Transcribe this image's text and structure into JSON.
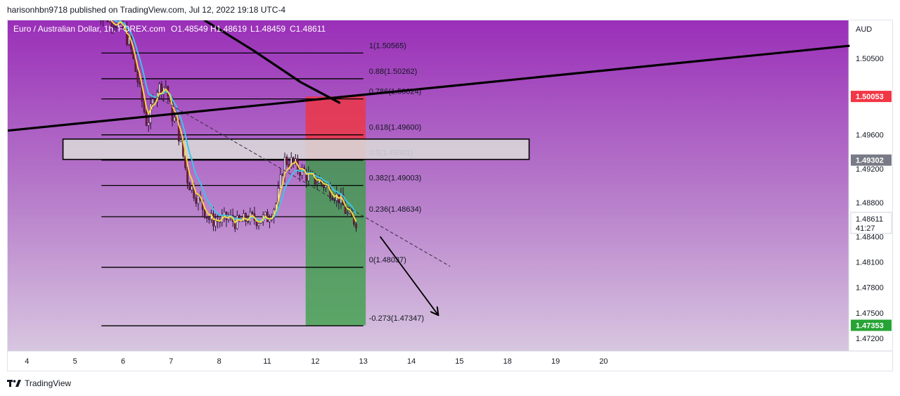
{
  "header": {
    "published_line": "harisonhbn9718 published on TradingView.com, Jul 12, 2022 19:18 UTC-4"
  },
  "legend": {
    "symbol": "Euro / Australian Dollar, 1h, FOREX.com",
    "open": "O1.48549",
    "high": "H1.48619",
    "low": "L1.48459",
    "close": "C1.48611"
  },
  "footer": {
    "brand": "TradingView"
  },
  "colors": {
    "background_top": "#9a2fb8",
    "background_bottom": "#d8c6e0",
    "candle_up": "#ffffff",
    "candle_down": "#8b1a2a",
    "ema_fast": "#f5d742",
    "ema_slow": "#3ec5e8",
    "stop_zone": "#f0353f",
    "target_zone": "#2e9e3a",
    "sr_box": "#d9d9d9",
    "price_tag_red": "#f23645",
    "price_tag_gray": "#787b86",
    "price_tag_green": "#26a334"
  },
  "chart_data": {
    "type": "candlestick",
    "instrument": "EURAUD",
    "timeframe": "1h",
    "currency_label": "AUD",
    "y_range": [
      1.4705,
      1.5095
    ],
    "y_ticks": [
      {
        "value": 1.505,
        "label": "1.50500"
      },
      {
        "value": 1.496,
        "label": "1.49600"
      },
      {
        "value": 1.492,
        "label": "1.49200"
      },
      {
        "value": 1.488,
        "label": "1.48800"
      },
      {
        "value": 1.484,
        "label": "1.48400"
      },
      {
        "value": 1.481,
        "label": "1.48100"
      },
      {
        "value": 1.478,
        "label": "1.47800"
      },
      {
        "value": 1.475,
        "label": "1.47500"
      },
      {
        "value": 1.472,
        "label": "1.47200"
      }
    ],
    "x_range": [
      3.6,
      21.1
    ],
    "x_ticks": [
      {
        "value": 4,
        "label": "4"
      },
      {
        "value": 5,
        "label": "5"
      },
      {
        "value": 6,
        "label": "6"
      },
      {
        "value": 7,
        "label": "7"
      },
      {
        "value": 8,
        "label": "8"
      },
      {
        "value": 9,
        "label": "11"
      },
      {
        "value": 10,
        "label": "12"
      },
      {
        "value": 11,
        "label": "13"
      },
      {
        "value": 12,
        "label": "14"
      },
      {
        "value": 13,
        "label": "15"
      },
      {
        "value": 14,
        "label": "18"
      },
      {
        "value": 15,
        "label": "19"
      },
      {
        "value": 16,
        "label": "20"
      }
    ],
    "candle_path": [
      [
        5.45,
        1.5105
      ],
      [
        5.8,
        1.5095
      ],
      [
        6.0,
        1.5085
      ],
      [
        6.15,
        1.5065
      ],
      [
        6.3,
        1.5025
      ],
      [
        6.5,
        1.4972
      ],
      [
        6.7,
        1.5015
      ],
      [
        6.9,
        1.5018
      ],
      [
        7.0,
        1.4985
      ],
      [
        7.1,
        1.4975
      ],
      [
        7.2,
        1.495
      ],
      [
        7.35,
        1.4905
      ],
      [
        7.6,
        1.488
      ],
      [
        7.8,
        1.486
      ],
      [
        8.0,
        1.4858
      ],
      [
        8.2,
        1.4862
      ],
      [
        8.4,
        1.4855
      ],
      [
        8.6,
        1.4862
      ],
      [
        8.8,
        1.486
      ],
      [
        9.0,
        1.4862
      ],
      [
        9.2,
        1.488
      ],
      [
        9.35,
        1.493
      ],
      [
        9.5,
        1.4928
      ],
      [
        9.7,
        1.4918
      ],
      [
        9.9,
        1.4908
      ],
      [
        10.1,
        1.4905
      ],
      [
        10.3,
        1.4895
      ],
      [
        10.5,
        1.4885
      ],
      [
        10.7,
        1.4862
      ],
      [
        10.85,
        1.4858
      ]
    ],
    "fib_levels": [
      {
        "ratio": "1",
        "price": 1.50565,
        "label": "1(1.50565)"
      },
      {
        "ratio": "0.88",
        "price": 1.50262,
        "label": "0.88(1.50262)"
      },
      {
        "ratio": "0.786",
        "price": 1.50024,
        "label": "0.786(1.50024)"
      },
      {
        "ratio": "0.618",
        "price": 1.496,
        "label": "0.618(1.49600)"
      },
      {
        "ratio": "0.5",
        "price": 1.49301,
        "label": "0.5(1.49301)"
      },
      {
        "ratio": "0.382",
        "price": 1.49003,
        "label": "0.382(1.49003)"
      },
      {
        "ratio": "0.236",
        "price": 1.48634,
        "label": "0.236(1.48634)"
      },
      {
        "ratio": "0",
        "price": 1.48037,
        "label": "0(1.48037)"
      },
      {
        "ratio": "-0.273",
        "price": 1.47347,
        "label": "-0.273(1.47347)"
      }
    ],
    "fib_x_range": [
      5.55,
      11.0
    ],
    "sr_zone": {
      "price_top": 1.4955,
      "price_bottom": 1.4931,
      "x_from": 4.75,
      "x_to": 14.45
    },
    "position": {
      "entry": 1.49302,
      "stop": 1.50053,
      "target": 1.47353,
      "x_from": 9.8,
      "x_to": 11.05
    },
    "trendlines": [
      {
        "name": "ascending-resistance",
        "points": [
          [
            3.6,
            1.4965
          ],
          [
            21.1,
            1.5065
          ]
        ]
      },
      {
        "name": "descending-curve",
        "points": [
          [
            7.7,
            1.5095
          ],
          [
            8.7,
            1.506
          ],
          [
            9.7,
            1.5022
          ],
          [
            10.5,
            1.4998
          ]
        ]
      },
      {
        "name": "dashed-trend",
        "points": [
          [
            6.7,
            1.5005
          ],
          [
            12.8,
            1.4805
          ]
        ],
        "dashed": true
      }
    ],
    "projection_arrow": {
      "from": [
        11.35,
        1.484
      ],
      "to": [
        12.55,
        1.4748
      ]
    },
    "price_tags": [
      {
        "price": 1.50053,
        "label": "1.50053",
        "kind": "red"
      },
      {
        "price": 1.49302,
        "label": "1.49302",
        "kind": "gray"
      },
      {
        "price": 1.48611,
        "label": "1.48611",
        "sub": "41:27",
        "kind": "current"
      },
      {
        "price": 1.47353,
        "label": "1.47353",
        "kind": "green"
      }
    ]
  }
}
